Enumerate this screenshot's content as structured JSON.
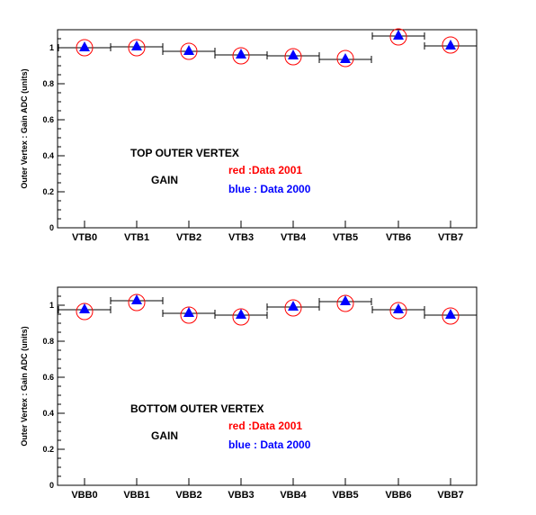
{
  "chart_data": [
    {
      "type": "scatter",
      "title": "TOP OUTER VERTEX",
      "subtitle": "GAIN",
      "ylabel": "Outer Vertex : Gain ADC (units)",
      "xlabel": "",
      "categories": [
        "VTB0",
        "VTB1",
        "VTB2",
        "VTB3",
        "VTB4",
        "VTB5",
        "VTB6",
        "VTB7"
      ],
      "ylim": [
        0,
        1.1
      ],
      "yticks": [
        "0",
        "0.2",
        "0.4",
        "0.6",
        "0.8",
        "1"
      ],
      "grid": false,
      "series": [
        {
          "name": "red :Data 2001",
          "color": "#ff0000",
          "marker": "open-circle",
          "values": [
            1.0,
            1.0,
            0.98,
            0.955,
            0.95,
            0.94,
            1.06,
            1.015
          ]
        },
        {
          "name": "blue  : Data 2000",
          "color": "#0000ff",
          "marker": "filled-triangle",
          "values": [
            1.0,
            1.005,
            0.98,
            0.96,
            0.955,
            0.935,
            1.065,
            1.01
          ]
        }
      ]
    },
    {
      "type": "scatter",
      "title": "BOTTOM OUTER VERTEX",
      "subtitle": "GAIN",
      "ylabel": "Outer Vertex : Gain ADC (units)",
      "xlabel": "",
      "categories": [
        "VBB0",
        "VBB1",
        "VBB2",
        "VBB3",
        "VBB4",
        "VBB5",
        "VBB6",
        "VBB7"
      ],
      "ylim": [
        0,
        1.1
      ],
      "yticks": [
        "0",
        "0.2",
        "0.4",
        "0.6",
        "0.8",
        "1"
      ],
      "grid": false,
      "series": [
        {
          "name": "red :Data 2001",
          "color": "#ff0000",
          "marker": "open-circle",
          "values": [
            0.965,
            1.015,
            0.945,
            0.935,
            0.985,
            1.01,
            0.97,
            0.94
          ]
        },
        {
          "name": "blue   : Data 2000",
          "color": "#0000ff",
          "marker": "filled-triangle",
          "values": [
            0.975,
            1.025,
            0.955,
            0.945,
            0.99,
            1.02,
            0.975,
            0.945
          ]
        }
      ]
    }
  ]
}
